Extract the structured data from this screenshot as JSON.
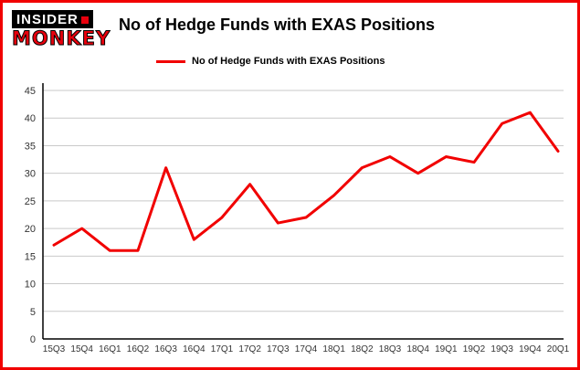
{
  "branding": {
    "insider": "INSIDER",
    "monkey": "MONKEY"
  },
  "title": "No of Hedge Funds with EXAS Positions",
  "legend": {
    "label": "No of Hedge Funds with EXAS Positions"
  },
  "colors": {
    "line": "#f10000",
    "frame_border": "#f10000",
    "grid": "#c9c9c9",
    "axis": "#000000",
    "tick_text": "#333333",
    "logo_red": "#e8000d"
  },
  "chart_data": {
    "type": "line",
    "title": "No of Hedge Funds with EXAS Positions",
    "categories": [
      "15Q3",
      "15Q4",
      "16Q1",
      "16Q2",
      "16Q3",
      "16Q4",
      "17Q1",
      "17Q2",
      "17Q3",
      "17Q4",
      "18Q1",
      "18Q2",
      "18Q3",
      "18Q4",
      "19Q1",
      "19Q2",
      "19Q3",
      "19Q4",
      "20Q1"
    ],
    "values": [
      17,
      20,
      16,
      16,
      31,
      18,
      22,
      28,
      21,
      22,
      26,
      31,
      33,
      30,
      33,
      32,
      39,
      41,
      34
    ],
    "series_name": "No of Hedge Funds with EXAS Positions",
    "xlabel": "",
    "ylabel": "",
    "ylim": [
      0,
      45
    ],
    "yticks": [
      0,
      5,
      10,
      15,
      20,
      25,
      30,
      35,
      40,
      45
    ],
    "grid": true,
    "legend_position": "top-left"
  }
}
